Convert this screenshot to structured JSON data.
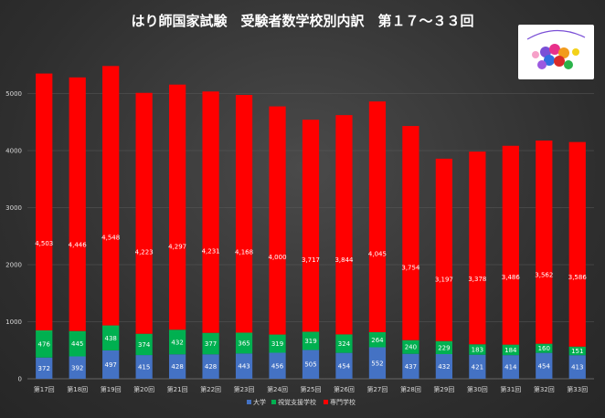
{
  "chart_data": {
    "type": "bar",
    "stacked": true,
    "title": "はり師国家試験　受験者数学校別内訳　第１７～３３回",
    "categories": [
      "第17回",
      "第18回",
      "第19回",
      "第20回",
      "第21回",
      "第22回",
      "第23回",
      "第24回",
      "第25回",
      "第26回",
      "第27回",
      "第28回",
      "第29回",
      "第30回",
      "第31回",
      "第32回",
      "第33回"
    ],
    "series": [
      {
        "name": "大学",
        "color": "#4472c4",
        "values": [
          372,
          392,
          497,
          415,
          428,
          428,
          443,
          456,
          505,
          454,
          552,
          437,
          432,
          421,
          414,
          454,
          413
        ]
      },
      {
        "name": "視覚支援学校",
        "color": "#00b050",
        "values": [
          476,
          445,
          438,
          374,
          432,
          377,
          365,
          319,
          319,
          324,
          264,
          240,
          229,
          183,
          184,
          160,
          151
        ]
      },
      {
        "name": "専門学校",
        "color": "#ff0000",
        "values": [
          4503,
          4446,
          4548,
          4223,
          4297,
          4231,
          4168,
          4000,
          3717,
          3844,
          4045,
          3754,
          3197,
          3378,
          3486,
          3562,
          3586
        ]
      }
    ],
    "ylim": [
      0,
      6000
    ],
    "yticks": [
      0,
      1000,
      2000,
      3000,
      4000,
      5000
    ],
    "grid": true,
    "legend": "bottom",
    "xlabel": "",
    "ylabel": ""
  }
}
